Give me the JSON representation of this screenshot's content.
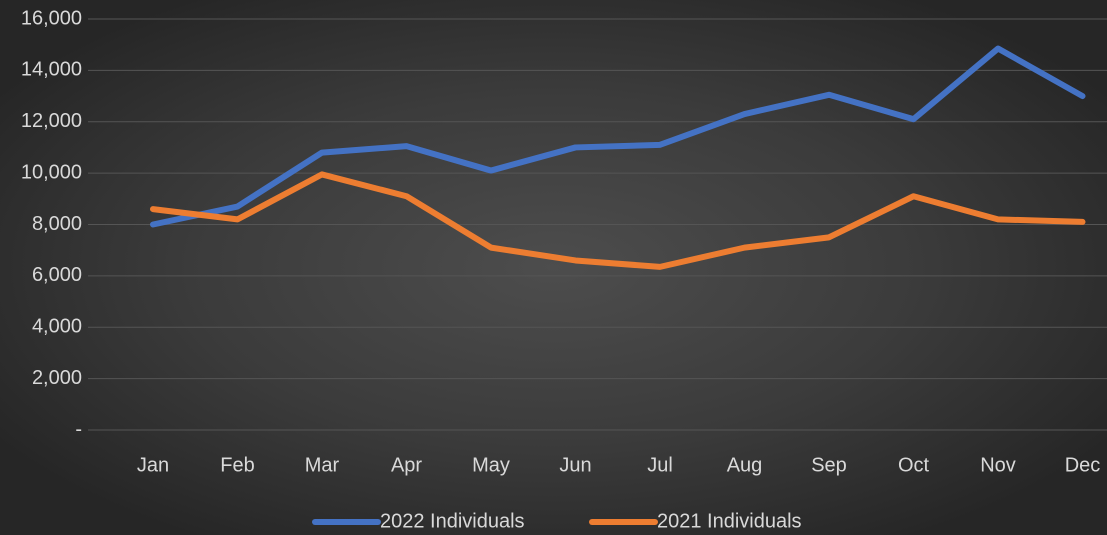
{
  "chart_data": {
    "type": "line",
    "categories": [
      "Jan",
      "Feb",
      "Mar",
      "Apr",
      "May",
      "Jun",
      "Jul",
      "Aug",
      "Sep",
      "Oct",
      "Nov",
      "Dec"
    ],
    "series": [
      {
        "name": "2022 Individuals",
        "color": "#4472c4",
        "values": [
          8000,
          8700,
          10800,
          11050,
          10100,
          11000,
          11100,
          12300,
          13050,
          12100,
          14850,
          13000
        ]
      },
      {
        "name": "2021 Individuals",
        "color": "#ed7d31",
        "values": [
          8600,
          8200,
          9950,
          9100,
          7100,
          6600,
          6350,
          7100,
          7500,
          9100,
          8200,
          8100
        ]
      }
    ],
    "ylim": [
      0,
      16000
    ],
    "yticks": [
      {
        "value": 0,
        "label": "-"
      },
      {
        "value": 2000,
        "label": "2,000"
      },
      {
        "value": 4000,
        "label": "4,000"
      },
      {
        "value": 6000,
        "label": "6,000"
      },
      {
        "value": 8000,
        "label": "8,000"
      },
      {
        "value": 10000,
        "label": "10,000"
      },
      {
        "value": 12000,
        "label": "12,000"
      },
      {
        "value": 14000,
        "label": "14,000"
      },
      {
        "value": 16000,
        "label": "16,000"
      }
    ],
    "grid": true,
    "legend": "bottom"
  }
}
